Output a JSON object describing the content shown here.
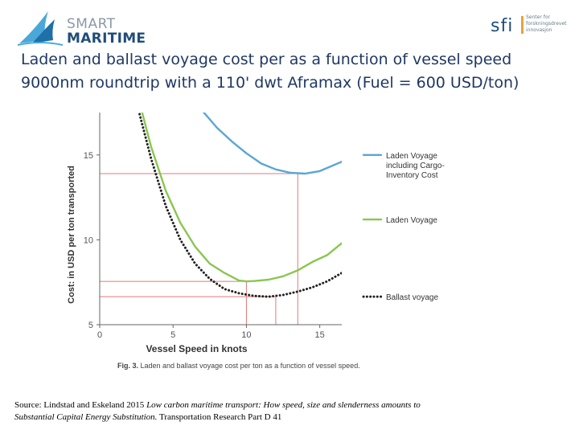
{
  "header": {
    "logo_left": {
      "line1": "SMART",
      "line2": "MARITIME",
      "icon": "ship-sail-logo-icon"
    },
    "logo_right": {
      "text": "sfi",
      "sub1": "Senter for",
      "sub2": "forskningsdrevet",
      "sub3": "innovasjon",
      "accent": "#e9a23b"
    }
  },
  "title": {
    "line1": "Laden and ballast voyage cost per as a function of vessel speed",
    "line2": "9000nm roundtrip with a 110' dwt Aframax (Fuel = 600 USD/ton)"
  },
  "source": {
    "prefix": "Source: Lindstad and Eskeland 2015 ",
    "italic": "Low carbon maritime transport: How speed, size and slenderness amounts to Substantial Capital Energy Substitution.",
    "suffix": " Transportation Research Part D 41"
  },
  "chart_data": {
    "type": "line",
    "xlabel": "Vessel Speed in knots",
    "ylabel": "Cost: in USD per ton transported",
    "caption_bold": "Fig. 3.",
    "caption": " Laden and ballast voyage cost per ton as a function of vessel speed.",
    "xlim": [
      0,
      16.5
    ],
    "ylim": [
      5,
      17.5
    ],
    "xticks": [
      0,
      5,
      10,
      15
    ],
    "yticks": [
      5,
      10,
      15
    ],
    "grid": false,
    "legend_position": "right",
    "series": [
      {
        "name": "Laden Voyage including Cargo-Inventory Cost",
        "style": "solid",
        "color": "#5aa6d4",
        "x": [
          7.0,
          8.0,
          9.0,
          10.0,
          11.0,
          12.0,
          13.0,
          14.0,
          15.0,
          16.5
        ],
        "y": [
          17.6,
          16.6,
          15.8,
          15.1,
          14.5,
          14.15,
          13.95,
          13.9,
          14.05,
          14.6
        ]
      },
      {
        "name": "Laden Voyage",
        "style": "solid",
        "color": "#8ac650",
        "x": [
          2.8,
          3.5,
          4.5,
          5.5,
          6.5,
          7.5,
          8.5,
          9.5,
          10.0,
          10.5,
          11.5,
          12.5,
          13.5,
          14.5,
          15.5,
          16.5
        ],
        "y": [
          17.8,
          15.5,
          12.9,
          11.0,
          9.6,
          8.6,
          8.05,
          7.6,
          7.55,
          7.57,
          7.65,
          7.85,
          8.2,
          8.7,
          9.1,
          9.8
        ]
      },
      {
        "name": "Ballast voyage",
        "style": "dotted",
        "color": "#222222",
        "x": [
          2.6,
          3.5,
          4.5,
          5.5,
          6.5,
          7.5,
          8.5,
          9.5,
          10.5,
          11.5,
          12.5,
          13.5,
          14.5,
          15.5,
          16.5
        ],
        "y": [
          17.8,
          14.8,
          12.0,
          10.0,
          8.6,
          7.7,
          7.1,
          6.85,
          6.7,
          6.65,
          6.75,
          6.95,
          7.2,
          7.55,
          8.05
        ]
      }
    ],
    "reference_lines": [
      {
        "color": "#e0797a",
        "x": 13.5,
        "y": 13.9
      },
      {
        "color": "#e0797a",
        "x": 10.0,
        "y": 7.55
      },
      {
        "color": "#e0797a",
        "x": 12.0,
        "y": 6.65
      }
    ]
  }
}
